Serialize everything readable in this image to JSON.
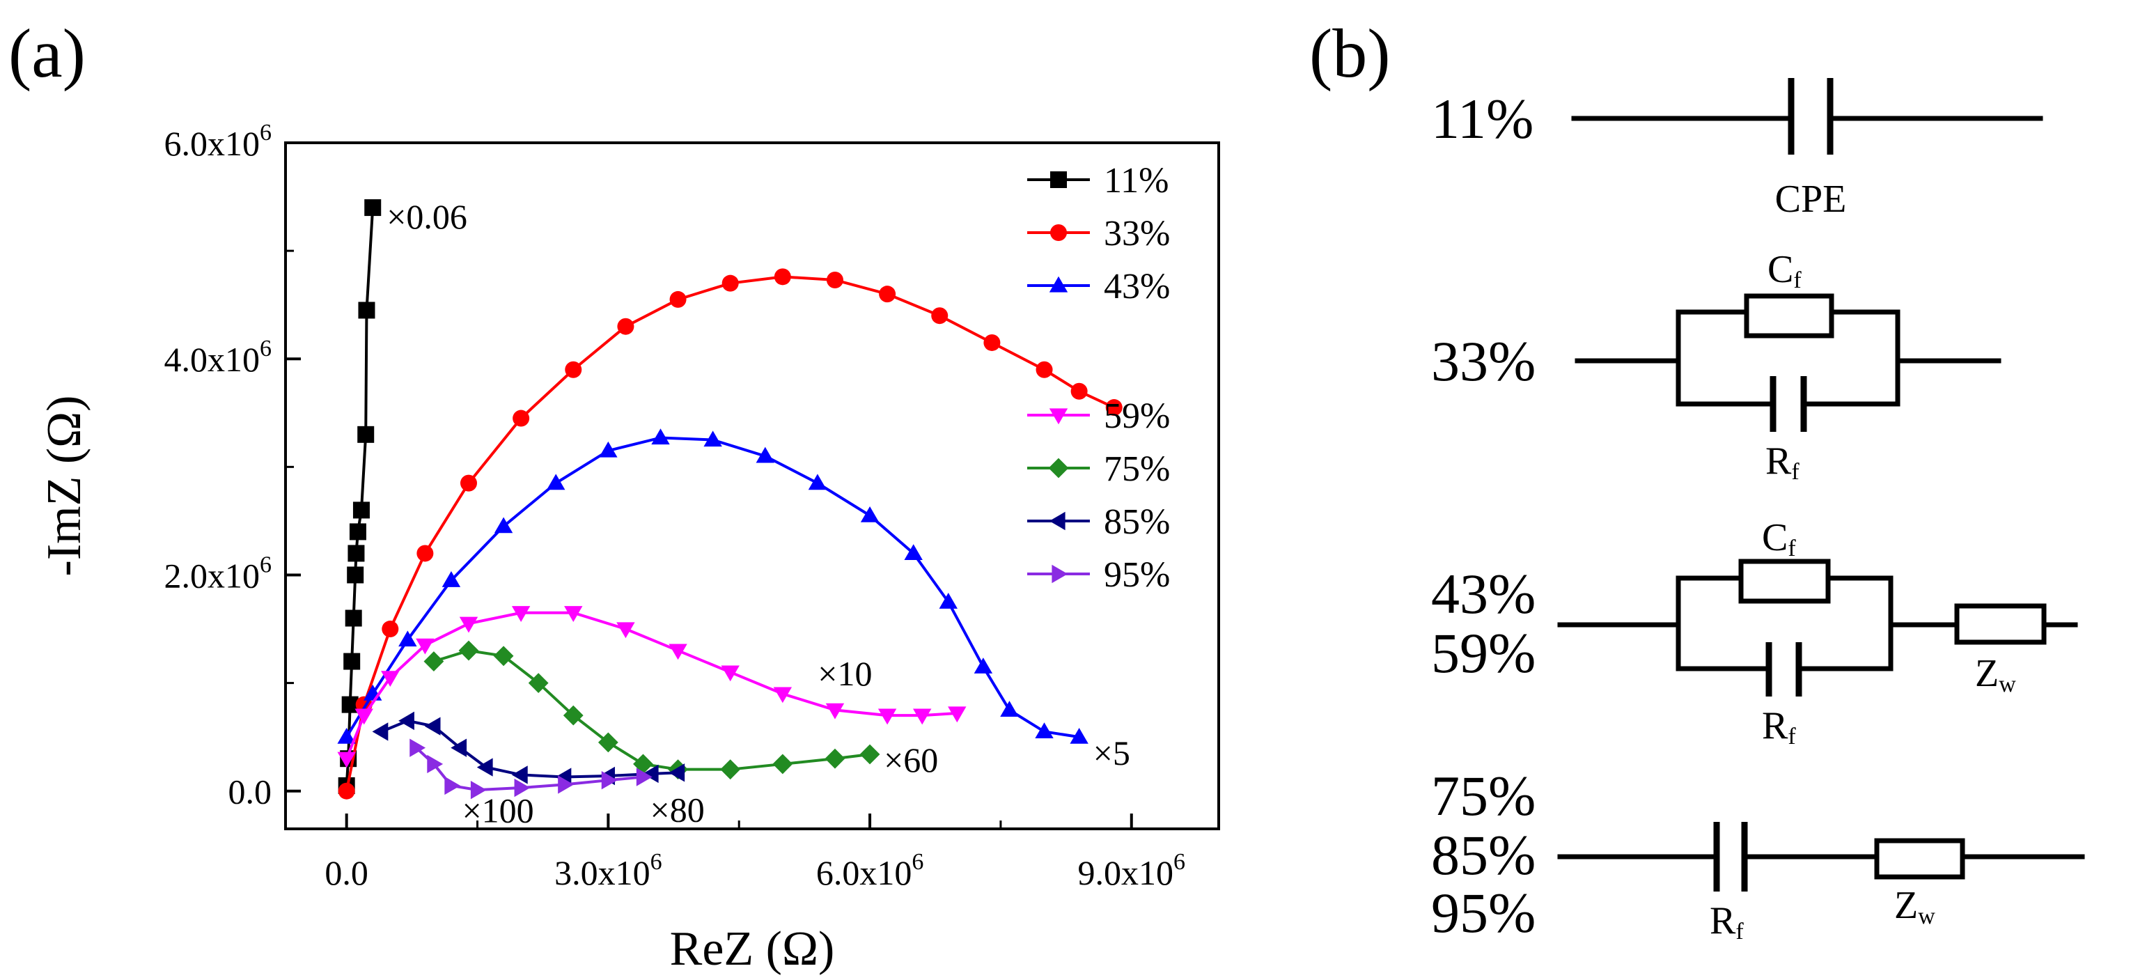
{
  "chart_data": {
    "type": "scatter",
    "panel_label": "(a)",
    "xlabel": "ReZ (Ω)",
    "ylabel": "-ImZ (Ω)",
    "xlim": [
      -700000,
      10000000
    ],
    "ylim": [
      -350000,
      6000000
    ],
    "xticks": [
      0,
      3000000,
      6000000,
      9000000
    ],
    "xtick_labels": [
      {
        "base": "0.0",
        "exp": ""
      },
      {
        "base": "3.0x10",
        "exp": "6"
      },
      {
        "base": "6.0x10",
        "exp": "6"
      },
      {
        "base": "9.0x10",
        "exp": "6"
      }
    ],
    "yticks": [
      0,
      2000000,
      4000000,
      6000000
    ],
    "ytick_labels": [
      {
        "base": "0.0",
        "exp": ""
      },
      {
        "base": "2.0x10",
        "exp": "6"
      },
      {
        "base": "4.0x10",
        "exp": "6"
      },
      {
        "base": "6.0x10",
        "exp": "6"
      }
    ],
    "x_minor_step": 1500000,
    "y_minor_step": 1000000,
    "grid": false,
    "legend_position": "top-right",
    "series": [
      {
        "name": "11%",
        "color": "#000000",
        "marker": "square",
        "scale_label": "×0.06",
        "points": [
          [
            0,
            50000
          ],
          [
            20000,
            300000
          ],
          [
            40000,
            800000
          ],
          [
            60000,
            1200000
          ],
          [
            80000,
            1600000
          ],
          [
            100000,
            2000000
          ],
          [
            110000,
            2200000
          ],
          [
            130000,
            2400000
          ],
          [
            170000,
            2600000
          ],
          [
            220000,
            3300000
          ],
          [
            230000,
            4450000
          ],
          [
            300000,
            5400000
          ]
        ]
      },
      {
        "name": "33%",
        "color": "#ff0000",
        "marker": "circle",
        "scale_label": "",
        "points": [
          [
            0,
            0
          ],
          [
            200000,
            800000
          ],
          [
            500000,
            1500000
          ],
          [
            900000,
            2200000
          ],
          [
            1400000,
            2850000
          ],
          [
            2000000,
            3450000
          ],
          [
            2600000,
            3900000
          ],
          [
            3200000,
            4300000
          ],
          [
            3800000,
            4550000
          ],
          [
            4400000,
            4700000
          ],
          [
            5000000,
            4760000
          ],
          [
            5600000,
            4730000
          ],
          [
            6200000,
            4600000
          ],
          [
            6800000,
            4400000
          ],
          [
            7400000,
            4150000
          ],
          [
            8000000,
            3900000
          ],
          [
            8400000,
            3700000
          ],
          [
            8800000,
            3550000
          ]
        ]
      },
      {
        "name": "43%",
        "color": "#0000ff",
        "marker": "triangle-up",
        "scale_label": "×5",
        "points": [
          [
            0,
            500000
          ],
          [
            300000,
            900000
          ],
          [
            700000,
            1400000
          ],
          [
            1200000,
            1950000
          ],
          [
            1800000,
            2450000
          ],
          [
            2400000,
            2850000
          ],
          [
            3000000,
            3150000
          ],
          [
            3600000,
            3270000
          ],
          [
            4200000,
            3250000
          ],
          [
            4800000,
            3100000
          ],
          [
            5400000,
            2850000
          ],
          [
            6000000,
            2550000
          ],
          [
            6500000,
            2200000
          ],
          [
            6900000,
            1750000
          ],
          [
            7300000,
            1150000
          ],
          [
            7600000,
            750000
          ],
          [
            8000000,
            550000
          ],
          [
            8400000,
            500000
          ]
        ]
      },
      {
        "name": "59%",
        "color": "#ff00ff",
        "marker": "triangle-down",
        "scale_label": "×10",
        "points": [
          [
            0,
            300000
          ],
          [
            200000,
            700000
          ],
          [
            500000,
            1050000
          ],
          [
            900000,
            1350000
          ],
          [
            1400000,
            1550000
          ],
          [
            2000000,
            1650000
          ],
          [
            2600000,
            1650000
          ],
          [
            3200000,
            1500000
          ],
          [
            3800000,
            1300000
          ],
          [
            4400000,
            1100000
          ],
          [
            5000000,
            900000
          ],
          [
            5600000,
            750000
          ],
          [
            6200000,
            700000
          ],
          [
            6600000,
            700000
          ],
          [
            7000000,
            720000
          ]
        ]
      },
      {
        "name": "75%",
        "color": "#228b22",
        "marker": "diamond",
        "scale_label": "×60",
        "points": [
          [
            1000000,
            1200000
          ],
          [
            1400000,
            1300000
          ],
          [
            1800000,
            1250000
          ],
          [
            2200000,
            1000000
          ],
          [
            2600000,
            700000
          ],
          [
            3000000,
            450000
          ],
          [
            3400000,
            250000
          ],
          [
            3800000,
            200000
          ],
          [
            4400000,
            200000
          ],
          [
            5000000,
            250000
          ],
          [
            5600000,
            300000
          ],
          [
            6000000,
            340000
          ]
        ]
      },
      {
        "name": "85%",
        "color": "#000080",
        "marker": "triangle-left",
        "scale_label": "×80",
        "points": [
          [
            400000,
            550000
          ],
          [
            700000,
            650000
          ],
          [
            1000000,
            600000
          ],
          [
            1300000,
            400000
          ],
          [
            1600000,
            220000
          ],
          [
            2000000,
            150000
          ],
          [
            2500000,
            130000
          ],
          [
            3000000,
            140000
          ],
          [
            3500000,
            160000
          ],
          [
            3800000,
            170000
          ]
        ]
      },
      {
        "name": "95%",
        "color": "#8a2be2",
        "marker": "triangle-right",
        "scale_label": "×100",
        "points": [
          [
            800000,
            400000
          ],
          [
            1000000,
            250000
          ],
          [
            1200000,
            50000
          ],
          [
            1500000,
            10000
          ],
          [
            2000000,
            30000
          ],
          [
            2500000,
            60000
          ],
          [
            3000000,
            100000
          ],
          [
            3400000,
            130000
          ]
        ]
      }
    ]
  },
  "panel_b": {
    "panel_label": "(b)",
    "circuits": [
      {
        "labels": [
          "11%"
        ],
        "components": [
          {
            "kind": "capacitor",
            "name": "CPE",
            "sub": ""
          }
        ]
      },
      {
        "labels": [
          "33%"
        ],
        "components": [
          {
            "kind": "resistor",
            "name": "C",
            "sub": "f"
          },
          {
            "kind": "capacitor",
            "name": "R",
            "sub": "f"
          }
        ]
      },
      {
        "labels": [
          "43%",
          "59%"
        ],
        "components": [
          {
            "kind": "resistor",
            "name": "C",
            "sub": "f"
          },
          {
            "kind": "capacitor",
            "name": "R",
            "sub": "f"
          },
          {
            "kind": "resistor",
            "name": "Z",
            "sub": "w"
          }
        ]
      },
      {
        "labels": [
          "75%",
          "85%",
          "95%"
        ],
        "components": [
          {
            "kind": "capacitor",
            "name": "R",
            "sub": "f"
          },
          {
            "kind": "resistor",
            "name": "Z",
            "sub": "w"
          }
        ]
      }
    ]
  }
}
